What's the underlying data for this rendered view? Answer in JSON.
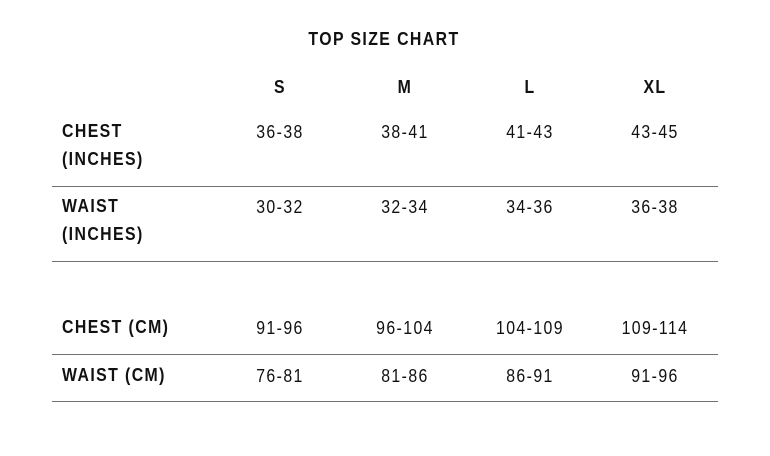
{
  "title": "TOP SIZE CHART",
  "sizes": [
    "S",
    "M",
    "L",
    "XL"
  ],
  "rows": [
    {
      "label": "CHEST (INCHES)",
      "label_lines": [
        "CHEST",
        "(INCHES)"
      ],
      "values": [
        "36-38",
        "38-41",
        "41-43",
        "43-45"
      ]
    },
    {
      "label": "WAIST (INCHES)",
      "label_lines": [
        "WAIST",
        "(INCHES)"
      ],
      "values": [
        "30-32",
        "32-34",
        "34-36",
        "36-38"
      ]
    },
    {
      "label": "CHEST (CM)",
      "label_lines": [
        "CHEST (CM)"
      ],
      "values": [
        "91-96",
        "96-104",
        "104-109",
        "109-114"
      ]
    },
    {
      "label": "WAIST (CM)",
      "label_lines": [
        "WAIST (CM)"
      ],
      "values": [
        "76-81",
        "81-86",
        "86-91",
        "91-96"
      ]
    }
  ]
}
